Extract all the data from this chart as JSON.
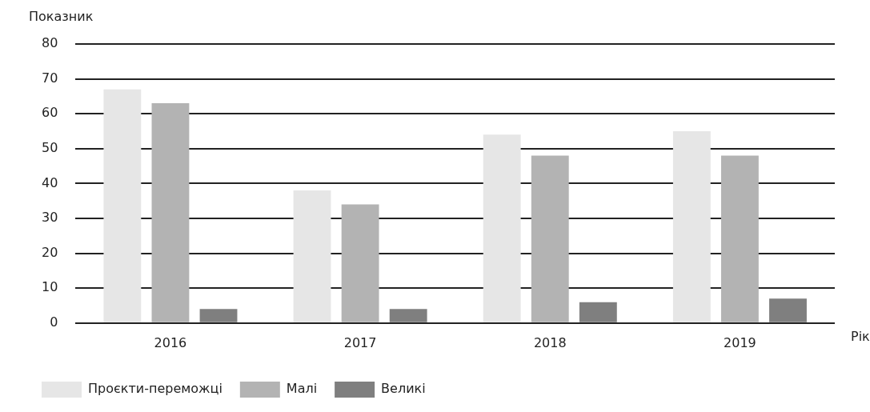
{
  "chart_data": {
    "type": "bar",
    "xlabel": "Рік",
    "ylabel": "Показник",
    "categories": [
      "2016",
      "2017",
      "2018",
      "2019"
    ],
    "series": [
      {
        "name": "Проєкти-переможці",
        "color": "#e6e6e6",
        "values": [
          67,
          38,
          54,
          55
        ]
      },
      {
        "name": "Малі",
        "color": "#b3b3b3",
        "values": [
          63,
          34,
          48,
          48
        ]
      },
      {
        "name": "Великі",
        "color": "#7f7f7f",
        "values": [
          4,
          4,
          6,
          7
        ]
      }
    ],
    "ylim": [
      0,
      80
    ],
    "yticks": [
      0,
      10,
      20,
      30,
      40,
      50,
      60,
      70,
      80
    ],
    "grid": "y",
    "legend": "bottom left"
  }
}
